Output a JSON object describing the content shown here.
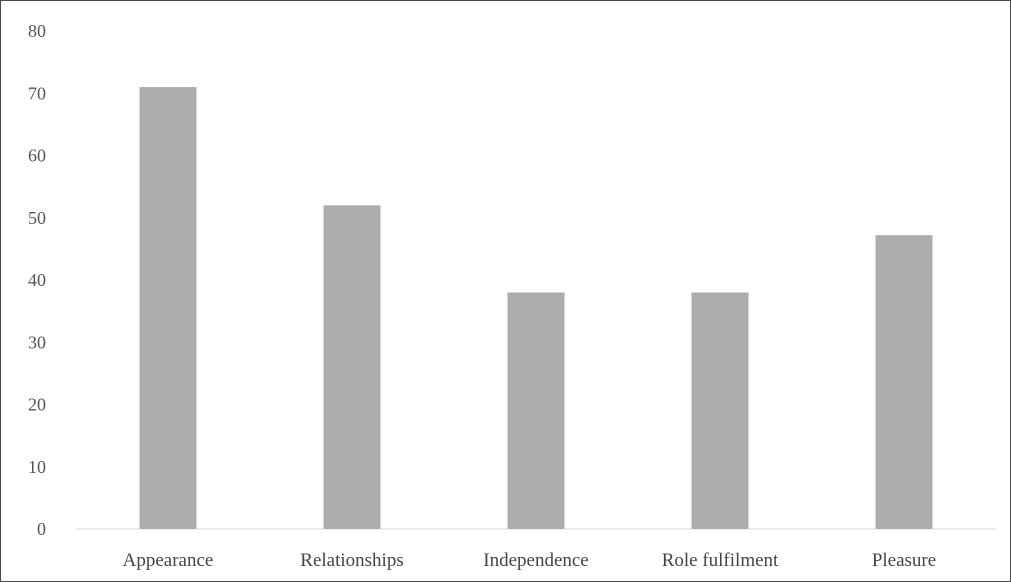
{
  "chart_data": {
    "type": "bar",
    "categories": [
      "Appearance",
      "Relationships",
      "Independence",
      "Role fulfilment",
      "Pleasure"
    ],
    "values": [
      71,
      52,
      38,
      38,
      47.2
    ],
    "ylim": [
      0,
      80
    ],
    "yticks": [
      0,
      10,
      20,
      30,
      40,
      50,
      60,
      70,
      80
    ],
    "title": "",
    "xlabel": "",
    "ylabel": "",
    "grid": false,
    "legend": "none",
    "colors": {
      "bar": "#adadb0",
      "axis": "#d9d9d9",
      "border": "#4a4a4a",
      "text": "#555555"
    }
  }
}
